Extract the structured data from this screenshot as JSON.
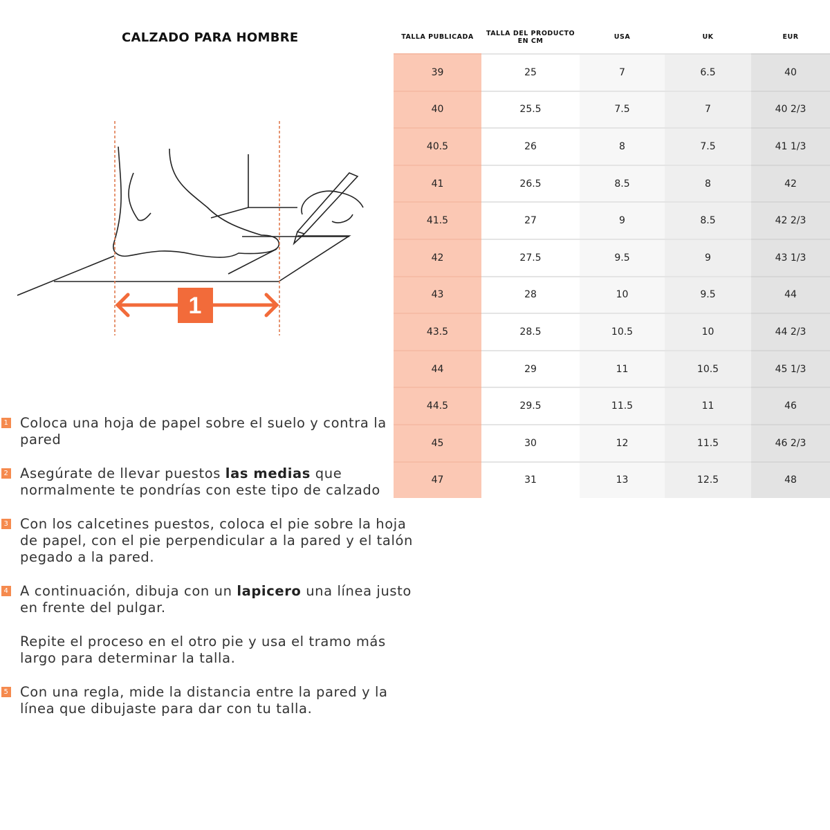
{
  "title": "CALZADO PARA HOMBRE",
  "colors": {
    "accent": "#f26b3a",
    "highlight_column": "#fbc8b4"
  },
  "illustration": {
    "label": "1"
  },
  "table": {
    "headers": [
      "TALLA PUBLICADA",
      "TALLA DEL PRODUCTO EN CM",
      "USA",
      "UK",
      "EUR"
    ],
    "rows": [
      [
        "39",
        "25",
        "7",
        "6.5",
        "40"
      ],
      [
        "40",
        "25.5",
        "7.5",
        "7",
        "40 2/3"
      ],
      [
        "40.5",
        "26",
        "8",
        "7.5",
        "41 1/3"
      ],
      [
        "41",
        "26.5",
        "8.5",
        "8",
        "42"
      ],
      [
        "41.5",
        "27",
        "9",
        "8.5",
        "42 2/3"
      ],
      [
        "42",
        "27.5",
        "9.5",
        "9",
        "43 1/3"
      ],
      [
        "43",
        "28",
        "10",
        "9.5",
        "44"
      ],
      [
        "43.5",
        "28.5",
        "10.5",
        "10",
        "44 2/3"
      ],
      [
        "44",
        "29",
        "11",
        "10.5",
        "45 1/3"
      ],
      [
        "44.5",
        "29.5",
        "11.5",
        "11",
        "46"
      ],
      [
        "45",
        "30",
        "12",
        "11.5",
        "46 2/3"
      ],
      [
        "47",
        "31",
        "13",
        "12.5",
        "48"
      ]
    ]
  },
  "steps": [
    {
      "num": "1",
      "parts": [
        "Coloca una hoja de papel sobre el suelo y contra la pared"
      ]
    },
    {
      "num": "2",
      "parts": [
        "Asegúrate de llevar puestos ",
        "las medias",
        " que normalmente te pondrías con este tipo de calzado"
      ]
    },
    {
      "num": "3",
      "parts": [
        "Con los calcetines puestos, coloca el pie sobre la hoja de papel, con el pie perpendicular a la pared y el talón pegado a la pared."
      ]
    },
    {
      "num": "4",
      "parts": [
        "A continuación, dibuja con un ",
        "lapicero",
        " una línea justo en frente del pulgar."
      ]
    },
    {
      "num": "",
      "parts": [
        "Repite el proceso en el otro pie y usa el tramo más largo para determinar la talla."
      ]
    },
    {
      "num": "5",
      "parts": [
        "Con una regla, mide la distancia entre la pared y la línea que dibujaste para dar con tu talla."
      ]
    }
  ]
}
